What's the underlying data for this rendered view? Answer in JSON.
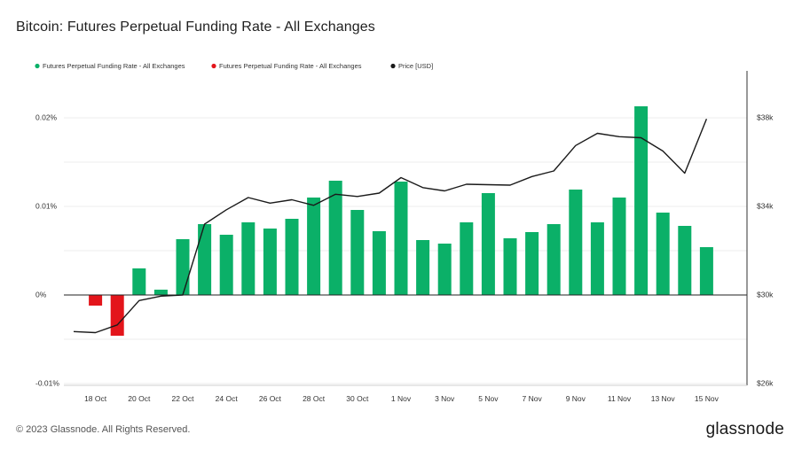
{
  "title": "Bitcoin: Futures Perpetual Funding Rate - All Exchanges",
  "footer": {
    "copyright": "© 2023 Glassnode. All Rights Reserved.",
    "logo": "glassnode"
  },
  "colors": {
    "positive": "#0bb068",
    "negative": "#e3151b",
    "price_line": "#1a1a1a",
    "grid": "#ececec",
    "zero_line": "#222222"
  },
  "chart_data": {
    "type": "bar",
    "title": "Bitcoin: Futures Perpetual Funding Rate - All Exchanges",
    "legend": [
      {
        "name": "Futures Perpetual Funding Rate - All Exchanges",
        "color": "#0bb068"
      },
      {
        "name": "Futures Perpetual Funding Rate - All Exchanges",
        "color": "#e3151b"
      },
      {
        "name": "Price [USD]",
        "color": "#1a1a1a"
      }
    ],
    "legend_position": "top-left",
    "x_tick_labels": [
      "18 Oct",
      "20 Oct",
      "22 Oct",
      "24 Oct",
      "26 Oct",
      "28 Oct",
      "30 Oct",
      "1 Nov",
      "3 Nov",
      "5 Nov",
      "7 Nov",
      "9 Nov",
      "11 Nov",
      "13 Nov",
      "15 Nov"
    ],
    "dates": [
      "17 Oct",
      "18 Oct",
      "19 Oct",
      "20 Oct",
      "21 Oct",
      "22 Oct",
      "23 Oct",
      "24 Oct",
      "25 Oct",
      "26 Oct",
      "27 Oct",
      "28 Oct",
      "29 Oct",
      "30 Oct",
      "31 Oct",
      "1 Nov",
      "2 Nov",
      "3 Nov",
      "4 Nov",
      "5 Nov",
      "6 Nov",
      "7 Nov",
      "8 Nov",
      "9 Nov",
      "10 Nov",
      "11 Nov",
      "12 Nov",
      "13 Nov",
      "14 Nov",
      "15 Nov"
    ],
    "funding_rate_percent": [
      null,
      -0.0012,
      -0.0046,
      0.003,
      0.0006,
      0.0063,
      0.008,
      0.0068,
      0.0082,
      0.0075,
      0.0086,
      0.011,
      0.0129,
      0.0096,
      0.0072,
      0.0128,
      0.0062,
      0.0058,
      0.0082,
      0.0115,
      0.0064,
      0.0071,
      0.008,
      0.0119,
      0.0082,
      0.011,
      0.0213,
      0.0093,
      0.0078,
      0.0054
    ],
    "price_usd": [
      28350,
      28300,
      28650,
      29750,
      29950,
      30000,
      33200,
      33850,
      34400,
      34150,
      34300,
      34050,
      34550,
      34450,
      34600,
      35300,
      34850,
      34700,
      35000,
      34980,
      34960,
      35350,
      35600,
      36750,
      37300,
      37150,
      37100,
      36500,
      35500,
      37950
    ],
    "y_left": {
      "label": "",
      "ticks": [
        "0.02%",
        "0.01%",
        "0%",
        "-0.01%"
      ],
      "range": [
        -0.01,
        0.0205
      ]
    },
    "y_right": {
      "label": "",
      "ticks": [
        "$38k",
        "$34k",
        "$30k",
        "$26k"
      ],
      "range": [
        26000,
        40200
      ]
    },
    "grid": true
  }
}
